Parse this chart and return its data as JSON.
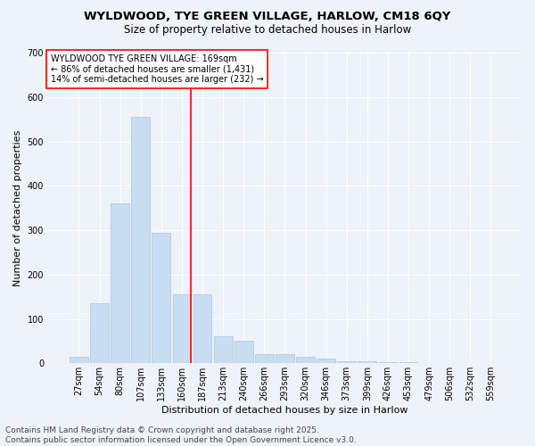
{
  "title_line1": "WYLDWOOD, TYE GREEN VILLAGE, HARLOW, CM18 6QY",
  "title_line2": "Size of property relative to detached houses in Harlow",
  "xlabel": "Distribution of detached houses by size in Harlow",
  "ylabel": "Number of detached properties",
  "bar_color": "#c9ddf0",
  "bar_edge_color": "#a8c4e0",
  "vline_color": "red",
  "annotation_text": "WYLDWOOD TYE GREEN VILLAGE: 169sqm\n← 86% of detached houses are smaller (1,431)\n14% of semi-detached houses are larger (232) →",
  "annotation_box_color": "white",
  "annotation_box_edge": "red",
  "bins": [
    "27sqm",
    "54sqm",
    "80sqm",
    "107sqm",
    "133sqm",
    "160sqm",
    "187sqm",
    "213sqm",
    "240sqm",
    "266sqm",
    "293sqm",
    "320sqm",
    "346sqm",
    "373sqm",
    "399sqm",
    "426sqm",
    "453sqm",
    "479sqm",
    "506sqm",
    "532sqm",
    "559sqm"
  ],
  "values": [
    15,
    135,
    360,
    555,
    295,
    155,
    155,
    60,
    50,
    20,
    20,
    15,
    10,
    5,
    5,
    2,
    2,
    1,
    0,
    0,
    0
  ],
  "ylim": [
    0,
    700
  ],
  "yticks": [
    0,
    100,
    200,
    300,
    400,
    500,
    600,
    700
  ],
  "footer": "Contains HM Land Registry data © Crown copyright and database right 2025.\nContains public sector information licensed under the Open Government Licence v3.0.",
  "background_color": "#eef2f9",
  "grid_color": "white",
  "title_fontsize": 9.5,
  "subtitle_fontsize": 8.5,
  "axis_label_fontsize": 8,
  "tick_fontsize": 7,
  "footer_fontsize": 6.5,
  "annot_fontsize": 7
}
